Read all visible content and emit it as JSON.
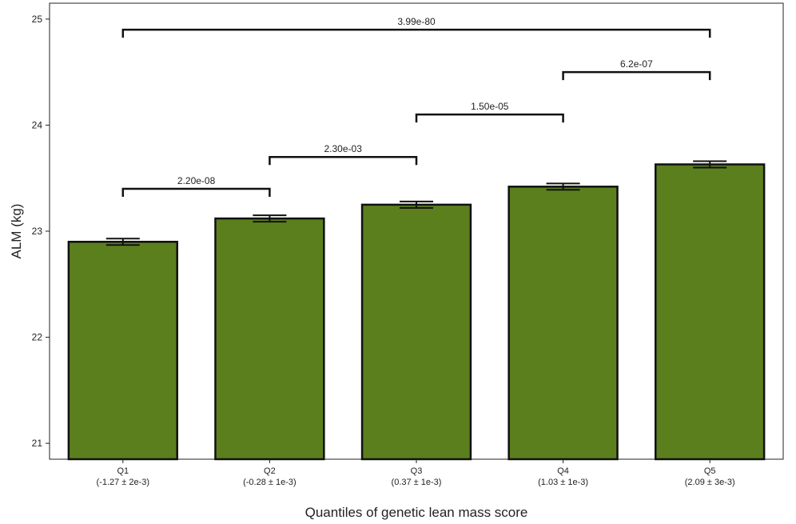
{
  "chart_data": {
    "type": "bar",
    "title": "",
    "xlabel": "Quantiles of genetic lean mass score",
    "ylabel": "ALM (kg)",
    "ylim": [
      20.85,
      25.15
    ],
    "yticks": [
      21,
      22,
      23,
      24,
      25
    ],
    "grid": false,
    "bar_color": "#5c7f1e",
    "categories": [
      "Q1",
      "Q2",
      "Q3",
      "Q4",
      "Q5"
    ],
    "category_sublabels": [
      "(-1.27 ± 2e-3)",
      "(-0.28 ± 1e-3)",
      "(0.37 ± 1e-3)",
      "(1.03 ± 1e-3)",
      "(2.09 ± 3e-3)"
    ],
    "values": [
      22.9,
      23.12,
      23.25,
      23.42,
      23.63
    ],
    "errors": [
      0.03,
      0.03,
      0.03,
      0.03,
      0.03
    ],
    "comparisons": [
      {
        "from": 0,
        "to": 1,
        "y": 23.4,
        "label": "2.20e-08"
      },
      {
        "from": 1,
        "to": 2,
        "y": 23.7,
        "label": "2.30e-03"
      },
      {
        "from": 2,
        "to": 3,
        "y": 24.1,
        "label": "1.50e-05"
      },
      {
        "from": 3,
        "to": 4,
        "y": 24.5,
        "label": "6.2e-07"
      },
      {
        "from": 0,
        "to": 4,
        "y": 24.9,
        "label": "3.99e-80"
      }
    ]
  }
}
